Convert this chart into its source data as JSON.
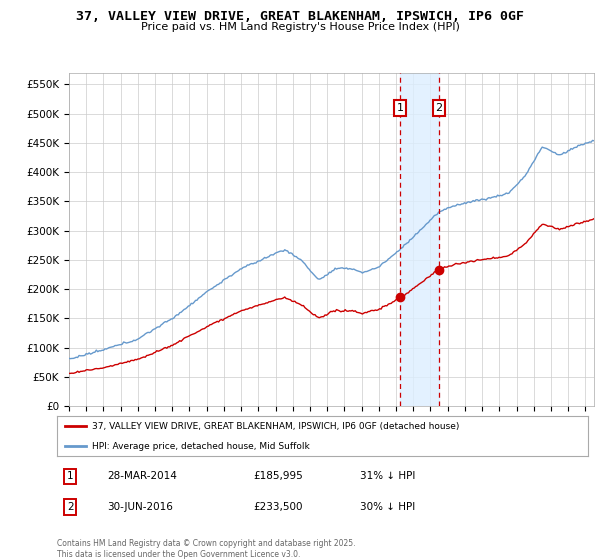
{
  "title": "37, VALLEY VIEW DRIVE, GREAT BLAKENHAM, IPSWICH, IP6 0GF",
  "subtitle": "Price paid vs. HM Land Registry's House Price Index (HPI)",
  "ylim": [
    0,
    570000
  ],
  "yticks": [
    0,
    50000,
    100000,
    150000,
    200000,
    250000,
    300000,
    350000,
    400000,
    450000,
    500000,
    550000
  ],
  "ytick_labels": [
    "£0",
    "£50K",
    "£100K",
    "£150K",
    "£200K",
    "£250K",
    "£300K",
    "£350K",
    "£400K",
    "£450K",
    "£500K",
    "£550K"
  ],
  "xlim_start": 1995.0,
  "xlim_end": 2025.5,
  "purchase1_date": 2014.24,
  "purchase1_price": 185995,
  "purchase1_label": "1",
  "purchase1_date_str": "28-MAR-2014",
  "purchase1_price_str": "£185,995",
  "purchase1_pct": "31% ↓ HPI",
  "purchase2_date": 2016.5,
  "purchase2_price": 233500,
  "purchase2_label": "2",
  "purchase2_date_str": "30-JUN-2016",
  "purchase2_price_str": "£233,500",
  "purchase2_pct": "30% ↓ HPI",
  "red_color": "#cc0000",
  "blue_color": "#6699cc",
  "shade_color": "#ddeeff",
  "grid_color": "#cccccc",
  "legend_label1": "37, VALLEY VIEW DRIVE, GREAT BLAKENHAM, IPSWICH, IP6 0GF (detached house)",
  "legend_label2": "HPI: Average price, detached house, Mid Suffolk",
  "footnote": "Contains HM Land Registry data © Crown copyright and database right 2025.\nThis data is licensed under the Open Government Licence v3.0."
}
